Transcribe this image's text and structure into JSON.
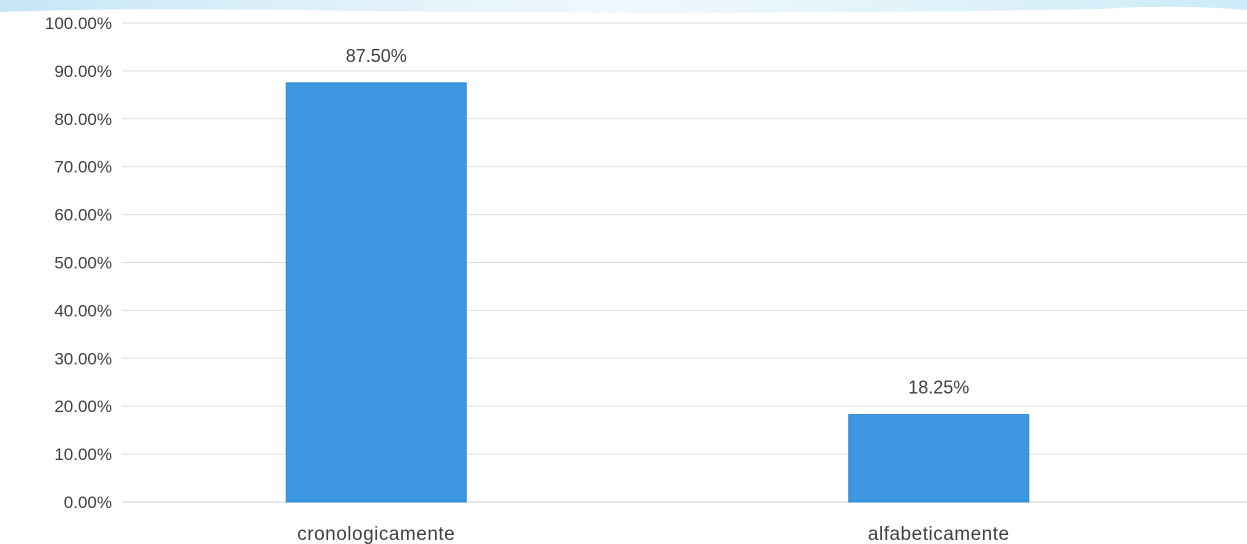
{
  "chart_data": {
    "type": "bar",
    "title": "",
    "xlabel": "",
    "ylabel": "",
    "categories": [
      "cronologicamente",
      "alfabeticamente"
    ],
    "values": [
      87.5,
      18.25
    ],
    "data_labels": [
      "87.50%",
      "18.25%"
    ],
    "ylim": [
      0,
      100
    ],
    "y_ticks": [
      0,
      10,
      20,
      30,
      40,
      50,
      60,
      70,
      80,
      90,
      100
    ],
    "y_tick_labels": [
      "0.00%",
      "10.00%",
      "20.00%",
      "30.00%",
      "40.00%",
      "50.00%",
      "60.00%",
      "70.00%",
      "80.00%",
      "90.00%",
      "100.00%"
    ],
    "grid": true,
    "legend": "none",
    "bar_color": "#3d97e0",
    "bar_edge_color": "#2f86cf"
  }
}
